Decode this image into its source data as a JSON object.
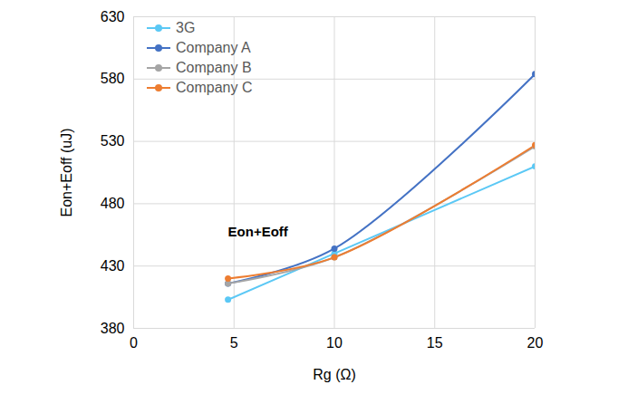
{
  "chart_data": {
    "type": "line",
    "x_label": "Rg (Ω)",
    "y_label": "Eon+Eoff (uJ)",
    "xlim": [
      0,
      20
    ],
    "xticks": [
      0,
      5,
      10,
      15,
      20
    ],
    "ylim": [
      380,
      630
    ],
    "yticks": [
      380,
      430,
      480,
      530,
      580,
      630
    ],
    "grid": true,
    "legend": "upper left",
    "marker": "circle",
    "x": [
      4.7,
      10,
      20
    ],
    "series": [
      {
        "name": "3G",
        "color": "#5bc8f5",
        "values": [
          403,
          440,
          510
        ]
      },
      {
        "name": "Company A",
        "color": "#4472c4",
        "values": [
          416,
          444,
          584
        ]
      },
      {
        "name": "Company B",
        "color": "#a5a5a5",
        "values": [
          416,
          437,
          526
        ]
      },
      {
        "name": "Company C",
        "color": "#ed7d31",
        "values": [
          420,
          437,
          527
        ]
      }
    ],
    "annotations": [
      {
        "text": "Eon+Eoff",
        "x": 4.7,
        "y": 457
      }
    ]
  }
}
